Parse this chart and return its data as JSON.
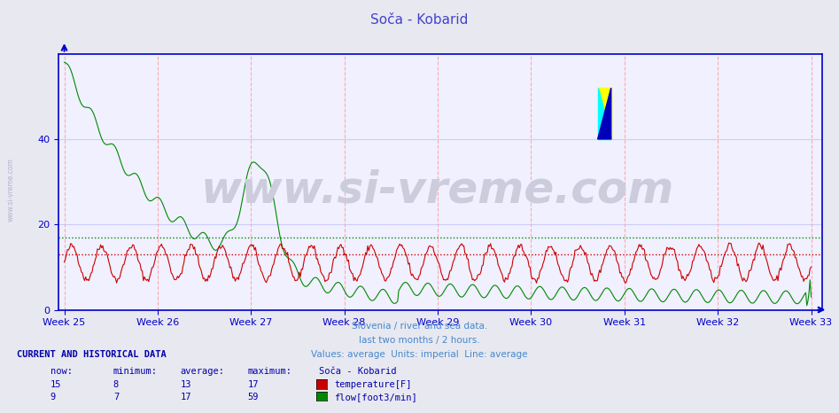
{
  "title": "Soča - Kobarid",
  "bg_color": "#e8e8f0",
  "plot_bg_color": "#f0f0ff",
  "title_color": "#4444cc",
  "axis_color": "#0000cc",
  "grid_color_h": "#ccccff",
  "grid_color_v": "#ffaaaa",
  "subtitle_lines": [
    "Slovenia / river and sea data.",
    "last two months / 2 hours.",
    "Values: average  Units: imperial  Line: average"
  ],
  "subtitle_color": "#4488cc",
  "weeks": [
    "Week 25",
    "Week 26",
    "Week 27",
    "Week 28",
    "Week 29",
    "Week 30",
    "Week 31",
    "Week 32",
    "Week 33"
  ],
  "week_positions": [
    0,
    84,
    168,
    252,
    336,
    420,
    504,
    588,
    672
  ],
  "ylim": [
    0,
    60
  ],
  "yticks": [
    0,
    20,
    40
  ],
  "n_points": 700,
  "temp_color": "#cc0000",
  "flow_color": "#008800",
  "temp_avg": 13,
  "flow_avg": 17,
  "watermark_text": "www.si-vreme.com",
  "watermark_color": "#ccccdd",
  "watermark_fontsize": 36,
  "footer_text": "CURRENT AND HISTORICAL DATA",
  "footer_color": "#0000aa",
  "table_header": [
    "now:",
    "minimum:",
    "average:",
    "maximum:",
    "Soča - Kobarid"
  ],
  "table_data": [
    [
      15,
      8,
      13,
      17,
      "temperature[F]"
    ],
    [
      9,
      7,
      17,
      59,
      "flow[foot3/min]"
    ]
  ],
  "table_colors": [
    "#cc0000",
    "#008800"
  ],
  "sidebar_text": "www.si-vreme.com",
  "sidebar_color": "#aaaacc"
}
